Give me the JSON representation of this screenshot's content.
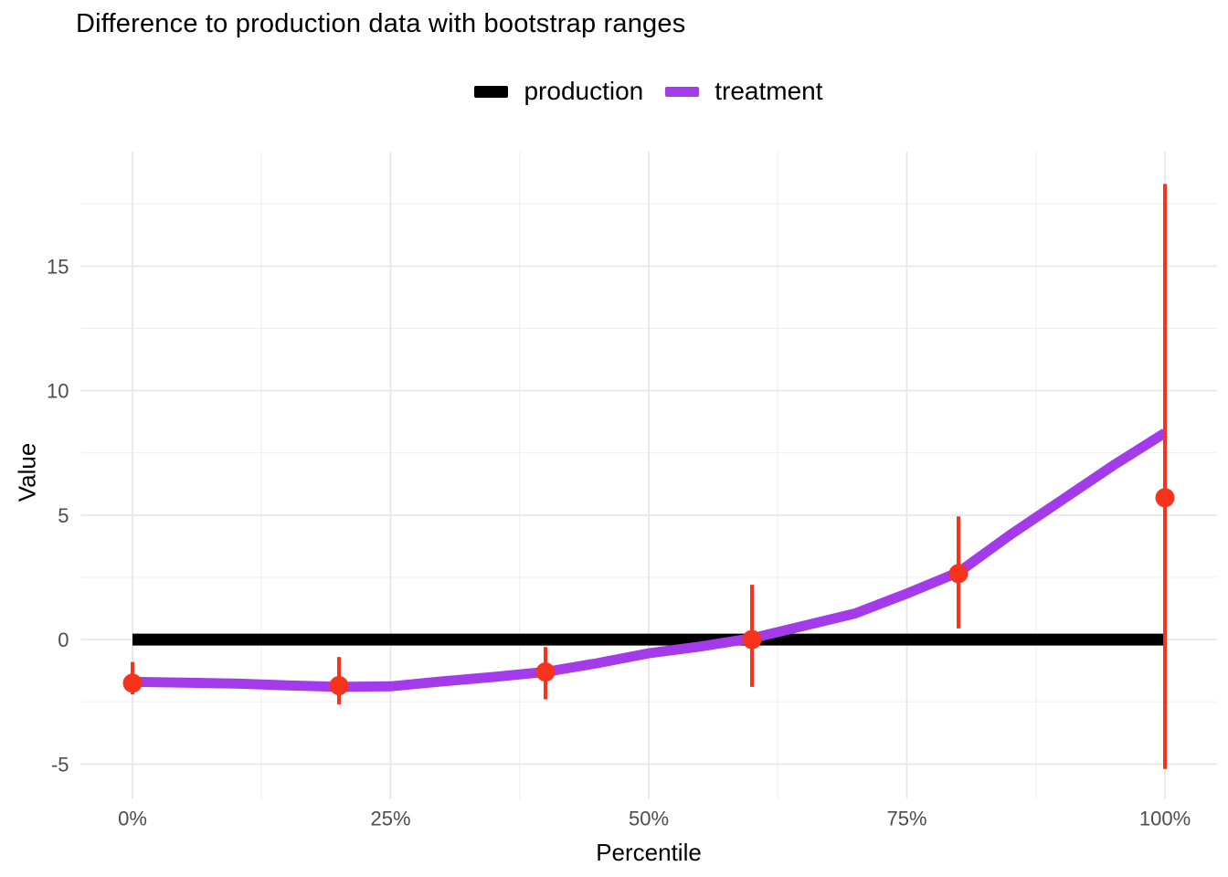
{
  "title": "Difference to production data with bootstrap ranges",
  "legend": {
    "items": [
      {
        "label": "production",
        "color": "#000000"
      },
      {
        "label": "treatment",
        "color": "#A43BEB"
      }
    ]
  },
  "axes": {
    "x_title": "Percentile",
    "y_title": "Value"
  },
  "colors": {
    "grid_major": "#E7E7E7",
    "grid_minor": "#EFEFEF",
    "tick_text": "#4D4D4D",
    "background": "#FFFFFF"
  },
  "chart_data": {
    "type": "line",
    "title": "Difference to production data with bootstrap ranges",
    "xlabel": "Percentile",
    "ylabel": "Value",
    "xlim": [
      -5,
      105
    ],
    "ylim": [
      -6.4,
      19.6
    ],
    "grid": "major+minor",
    "legend_position": "top-center",
    "x_major_ticks": [
      {
        "value": 0,
        "label": "0%"
      },
      {
        "value": 25,
        "label": "25%"
      },
      {
        "value": 50,
        "label": "50%"
      },
      {
        "value": 75,
        "label": "75%"
      },
      {
        "value": 100,
        "label": "100%"
      }
    ],
    "x_minor_ticks": [
      12.5,
      37.5,
      62.5,
      87.5
    ],
    "y_major_ticks": [
      {
        "value": -5,
        "label": "-5"
      },
      {
        "value": 0,
        "label": "0"
      },
      {
        "value": 5,
        "label": "5"
      },
      {
        "value": 10,
        "label": "10"
      },
      {
        "value": 15,
        "label": "15"
      }
    ],
    "y_minor_ticks": [
      -2.5,
      2.5,
      7.5,
      12.5,
      17.5
    ],
    "series": [
      {
        "name": "production",
        "geom": "line",
        "color": "#000000",
        "stroke_width": 13,
        "points": [
          [
            0,
            0
          ],
          [
            100,
            0
          ]
        ]
      },
      {
        "name": "treatment",
        "geom": "line",
        "color": "#A43BEB",
        "stroke_width": 11,
        "points": [
          [
            0,
            -1.7
          ],
          [
            5,
            -1.73
          ],
          [
            10,
            -1.77
          ],
          [
            15,
            -1.84
          ],
          [
            20,
            -1.9
          ],
          [
            25,
            -1.88
          ],
          [
            30,
            -1.68
          ],
          [
            35,
            -1.5
          ],
          [
            40,
            -1.3
          ],
          [
            45,
            -0.95
          ],
          [
            50,
            -0.55
          ],
          [
            55,
            -0.28
          ],
          [
            60,
            0.05
          ],
          [
            65,
            0.55
          ],
          [
            70,
            1.05
          ],
          [
            75,
            1.85
          ],
          [
            80,
            2.7
          ],
          [
            85,
            4.2
          ],
          [
            90,
            5.6
          ],
          [
            95,
            7.0
          ],
          [
            100,
            8.3
          ]
        ]
      },
      {
        "name": "bootstrap",
        "geom": "pointrange",
        "color": "#F8331D",
        "stroke_width": 4,
        "point_radius": 10.5,
        "x": [
          0,
          20,
          40,
          60,
          80,
          100
        ],
        "y": [
          -1.75,
          -1.85,
          -1.3,
          0.0,
          2.65,
          5.7
        ],
        "ymin": [
          -2.2,
          -2.6,
          -2.4,
          -1.9,
          0.45,
          -5.2
        ],
        "ymax": [
          -0.9,
          -0.7,
          -0.3,
          2.2,
          4.95,
          18.3
        ]
      }
    ]
  }
}
